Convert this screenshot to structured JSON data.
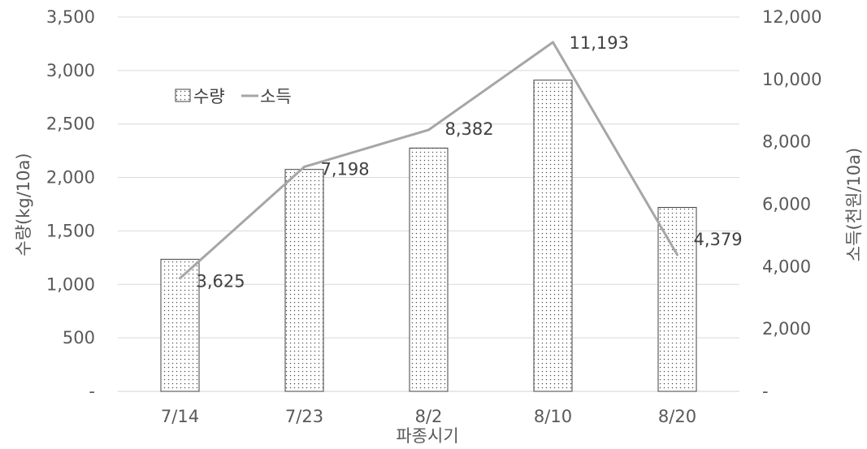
{
  "chart_data": {
    "type": "bar+line",
    "categories": [
      "7/14",
      "7/23",
      "8/2",
      "8/10",
      "8/20"
    ],
    "series": [
      {
        "name": "수량",
        "type": "bar",
        "axis": "left",
        "values": [
          1235,
          2075,
          2275,
          2910,
          1720
        ]
      },
      {
        "name": "소득",
        "type": "line",
        "axis": "right",
        "values": [
          3625,
          7198,
          8382,
          11193,
          4379
        ],
        "data_labels": [
          "3,625",
          "7,198",
          "8,382",
          "11,193",
          "4,379"
        ]
      }
    ],
    "xlabel": "파종시기",
    "ylabel": "수량(kg/10a)",
    "ylabel_right": "소득(천원/10a)",
    "ylim": [
      0,
      3500
    ],
    "ylim_right": [
      0,
      12000
    ],
    "yticks": [
      "-",
      "500",
      "1,000",
      "1,500",
      "2,000",
      "2,500",
      "3,000",
      "3,500"
    ],
    "yticks_right": [
      "-",
      "2,000",
      "4,000",
      "6,000",
      "8,000",
      "10,000",
      "12,000"
    ],
    "grid": true,
    "legend": "upper-left",
    "colors": {
      "bar_fill": "#ffffff",
      "bar_edge": "#404040",
      "bar_dots": "#555555",
      "line": "#a6a6a6",
      "grid": "#d9d9d9"
    }
  }
}
